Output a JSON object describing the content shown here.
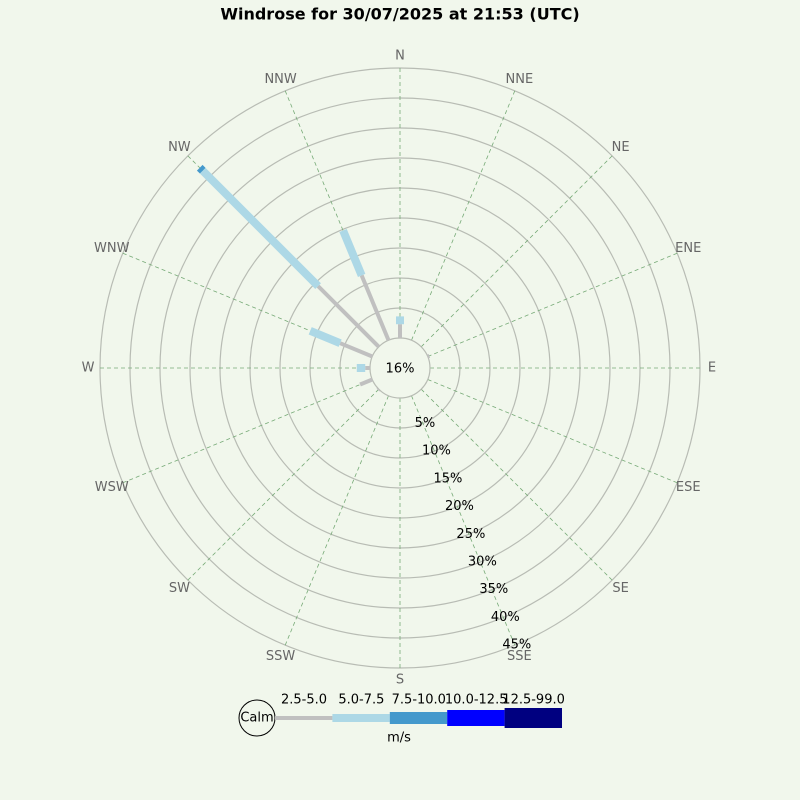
{
  "chart_data": {
    "type": "windrose",
    "title": "Windrose for 30/07/2025 at 21:53 (UTC)",
    "categories": [
      "N",
      "NNE",
      "NE",
      "ENE",
      "E",
      "ESE",
      "SE",
      "SSE",
      "S",
      "SSW",
      "SW",
      "WSW",
      "W",
      "WNW",
      "NW",
      "NNW"
    ],
    "calm": {
      "label": "Calm",
      "value": 16,
      "value_label": "16%"
    },
    "rlim": [
      0,
      45
    ],
    "rticks": [
      {
        "value": 5,
        "label": "5%"
      },
      {
        "value": 10,
        "label": "10%"
      },
      {
        "value": 15,
        "label": "15%"
      },
      {
        "value": 20,
        "label": "20%"
      },
      {
        "value": 25,
        "label": "25%"
      },
      {
        "value": 30,
        "label": "30%"
      },
      {
        "value": 35,
        "label": "35%"
      },
      {
        "value": 40,
        "label": "40%"
      },
      {
        "value": 45,
        "label": "45%"
      }
    ],
    "legend_unit": "m/s",
    "series": [
      {
        "name": "2.5-5.0",
        "color": "#c0c0c0",
        "values": [
          2.3,
          0,
          0,
          0.3,
          0,
          0,
          0,
          0,
          0,
          0,
          0.2,
          2.2,
          0.8,
          5.8,
          14.3,
          11.7
        ]
      },
      {
        "name": "5.0-7.5",
        "color": "#add8e6",
        "values": [
          1.3,
          0,
          0,
          0,
          0,
          0,
          0,
          0,
          0,
          0,
          0,
          0,
          1.4,
          5.4,
          27.2,
          8.1
        ]
      },
      {
        "name": "7.5-10.0",
        "color": "#4499cc",
        "values": [
          0,
          0,
          0,
          0,
          0,
          0,
          0,
          0,
          0,
          0,
          0,
          0,
          0,
          0,
          0.7,
          0
        ]
      },
      {
        "name": "10.0-12.5",
        "color": "#0000ff",
        "values": [
          0,
          0,
          0,
          0,
          0,
          0,
          0,
          0,
          0,
          0,
          0,
          0,
          0,
          0,
          0,
          0
        ]
      },
      {
        "name": "12.5-99.0",
        "color": "#000080",
        "values": [
          0,
          0,
          0,
          0,
          0,
          0,
          0,
          0,
          0,
          0,
          0,
          0,
          0,
          0,
          0,
          0
        ]
      }
    ]
  }
}
